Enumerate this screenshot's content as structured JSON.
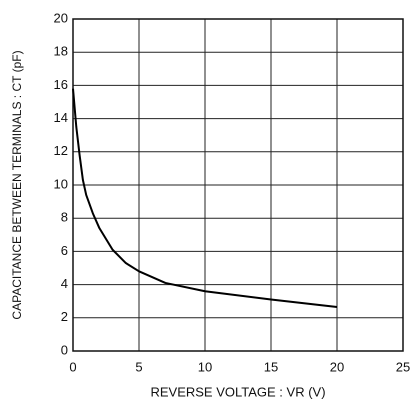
{
  "chart_data": {
    "type": "line",
    "xlabel": "REVERSE VOLTAGE : VR (V)",
    "ylabel": "CAPACITANCE BETWEEN TERMINALS : CT (pF)",
    "x": [
      0,
      0.25,
      0.5,
      0.75,
      1,
      1.5,
      2,
      3,
      4,
      5,
      7,
      10,
      15,
      20
    ],
    "series": [
      {
        "name": null,
        "color": "#000000",
        "values": [
          15.8,
          13.5,
          11.8,
          10.3,
          9.4,
          8.3,
          7.4,
          6.1,
          5.3,
          4.8,
          4.1,
          3.6,
          3.1,
          2.65
        ]
      }
    ],
    "xlim": [
      0,
      25
    ],
    "xticks": [
      0,
      5,
      10,
      15,
      20,
      25
    ],
    "ylim": [
      0,
      20
    ],
    "yticks": [
      0,
      2,
      4,
      6,
      8,
      10,
      12,
      14,
      16,
      18,
      20
    ],
    "grid": true
  }
}
